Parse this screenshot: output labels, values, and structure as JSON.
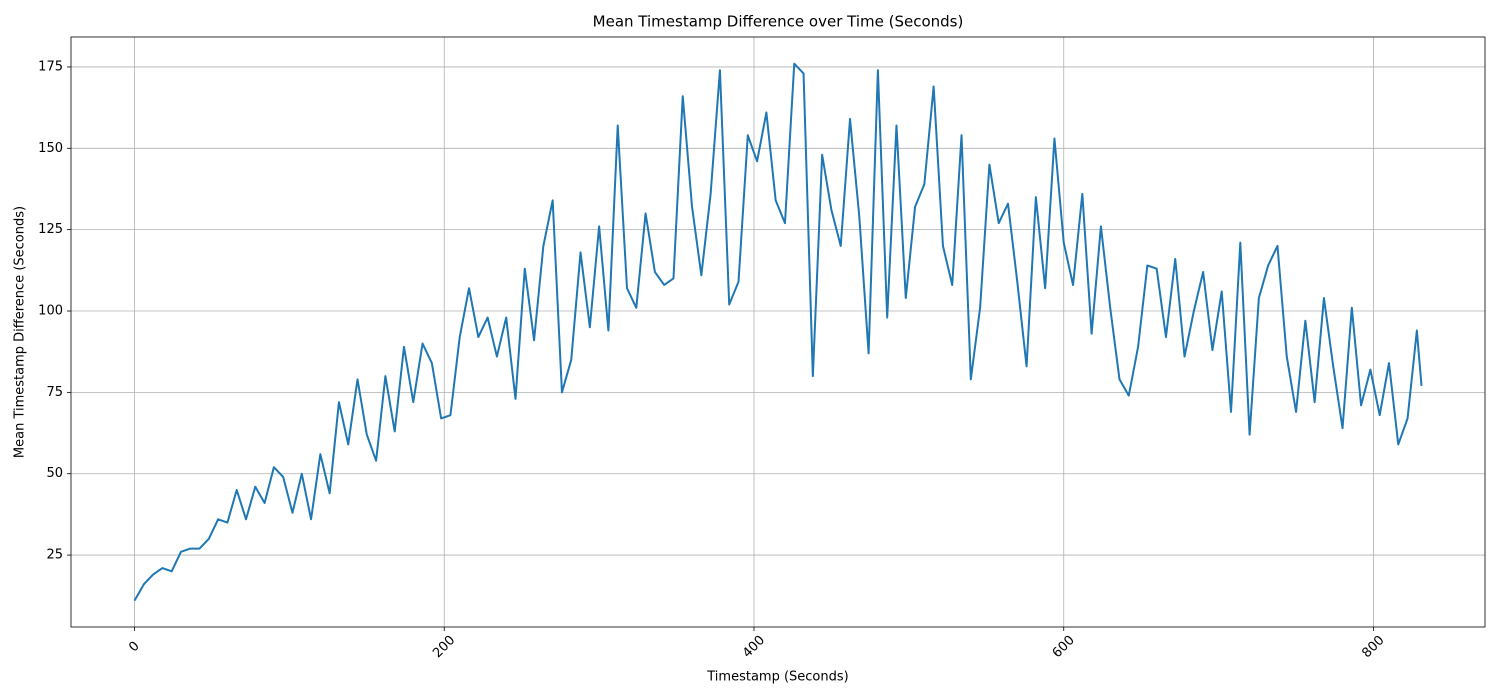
{
  "chart_data": {
    "type": "line",
    "title": "Mean Timestamp Difference over Time (Seconds)",
    "x_label": "Timestamp (Seconds)",
    "y_label": "Mean Timestamp Difference (Seconds)",
    "color": "#1f77b4",
    "grid": true,
    "xlim": [
      -41,
      872
    ],
    "ylim": [
      2.9,
      184.2
    ],
    "xticks": [
      0,
      200,
      400,
      600,
      800
    ],
    "yticks": [
      25,
      50,
      75,
      100,
      125,
      150,
      175
    ],
    "x": [
      0,
      6,
      12,
      18,
      24,
      30,
      36,
      42,
      48,
      54,
      60,
      66,
      72,
      78,
      84,
      90,
      96,
      102,
      108,
      114,
      120,
      126,
      132,
      138,
      144,
      150,
      156,
      162,
      168,
      174,
      180,
      186,
      192,
      198,
      204,
      210,
      216,
      222,
      228,
      234,
      240,
      246,
      252,
      258,
      264,
      270,
      276,
      282,
      288,
      294,
      300,
      306,
      312,
      318,
      324,
      330,
      336,
      342,
      348,
      354,
      360,
      366,
      372,
      378,
      384,
      390,
      396,
      402,
      408,
      414,
      420,
      426,
      432,
      438,
      444,
      450,
      456,
      462,
      468,
      474,
      480,
      486,
      492,
      498,
      504,
      510,
      516,
      522,
      528,
      534,
      540,
      546,
      552,
      558,
      564,
      570,
      576,
      582,
      588,
      594,
      600,
      606,
      612,
      618,
      624,
      630,
      636,
      642,
      648,
      654,
      660,
      666,
      672,
      678,
      684,
      690,
      696,
      702,
      708,
      714,
      720,
      726,
      732,
      738,
      744,
      750,
      756,
      762,
      768,
      774,
      780,
      786,
      792,
      798,
      804,
      810,
      816,
      822,
      828,
      831
    ],
    "values": [
      11,
      16,
      19,
      21,
      20,
      26,
      27,
      27,
      30,
      36,
      35,
      45,
      36,
      46,
      41,
      52,
      49,
      38,
      50,
      36,
      56,
      44,
      72,
      59,
      79,
      62,
      54,
      80,
      63,
      89,
      72,
      90,
      84,
      67,
      68,
      92,
      107,
      92,
      98,
      86,
      98,
      73,
      113,
      91,
      120,
      134,
      75,
      85,
      118,
      95,
      126,
      94,
      157,
      107,
      101,
      130,
      112,
      108,
      110,
      166,
      132,
      111,
      136,
      174,
      102,
      109,
      154,
      146,
      161,
      134,
      127,
      176,
      173,
      80,
      148,
      131,
      120,
      159,
      129,
      87,
      174,
      98,
      157,
      104,
      132,
      139,
      169,
      120,
      108,
      154,
      79,
      101,
      145,
      127,
      133,
      109,
      83,
      135,
      107,
      153,
      121,
      108,
      136,
      93,
      126,
      101,
      79,
      74,
      89,
      114,
      113,
      92,
      116,
      86,
      100,
      112,
      88,
      106,
      69,
      121,
      62,
      104,
      114,
      120,
      86,
      69,
      97,
      72,
      104,
      83,
      64,
      101,
      71,
      82,
      68,
      84,
      59,
      67,
      94,
      77
    ]
  }
}
